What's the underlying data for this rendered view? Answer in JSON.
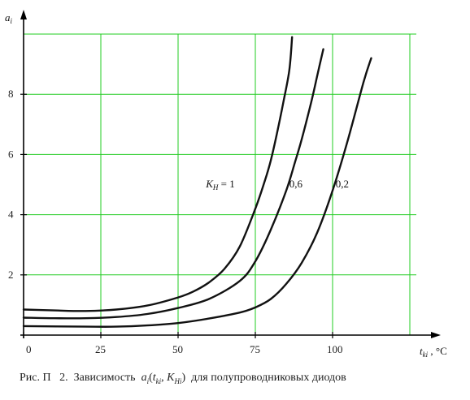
{
  "caption": "Рис. П   2.  Зависимость  a_i(t_ki, K_Hi)  для полупроводниковых диодов",
  "chart_data": {
    "type": "line",
    "title": "",
    "xlabel": "t_ki, °C",
    "ylabel": "a_i",
    "xlim": [
      0,
      125
    ],
    "ylim": [
      0,
      10
    ],
    "x_ticks": [
      0,
      25,
      50,
      75,
      100
    ],
    "y_ticks": [
      2,
      4,
      6,
      8
    ],
    "grid": true,
    "colors": {
      "grid": "#22cc22",
      "curve": "#111111",
      "axis": "#000000"
    },
    "series": [
      {
        "name": "K_H = 1",
        "label_position": [
          59,
          4.9
        ],
        "points": [
          [
            0,
            0.85
          ],
          [
            10,
            0.82
          ],
          [
            20,
            0.8
          ],
          [
            30,
            0.85
          ],
          [
            40,
            0.98
          ],
          [
            50,
            1.25
          ],
          [
            55,
            1.45
          ],
          [
            60,
            1.75
          ],
          [
            65,
            2.2
          ],
          [
            70,
            2.95
          ],
          [
            75,
            4.2
          ],
          [
            78,
            5.1
          ],
          [
            80,
            5.8
          ],
          [
            82,
            6.7
          ],
          [
            84,
            7.7
          ],
          [
            86,
            8.8
          ],
          [
            86.9,
            9.9
          ]
        ]
      },
      {
        "name": "0,6",
        "label_position": [
          86,
          4.9
        ],
        "points": [
          [
            0,
            0.58
          ],
          [
            10,
            0.56
          ],
          [
            20,
            0.56
          ],
          [
            30,
            0.6
          ],
          [
            40,
            0.7
          ],
          [
            50,
            0.9
          ],
          [
            60,
            1.2
          ],
          [
            70,
            1.8
          ],
          [
            75,
            2.45
          ],
          [
            80,
            3.5
          ],
          [
            85,
            4.8
          ],
          [
            88,
            5.8
          ],
          [
            90,
            6.5
          ],
          [
            93,
            7.7
          ],
          [
            95,
            8.6
          ],
          [
            97,
            9.5
          ]
        ]
      },
      {
        "name": "0,2",
        "label_position": [
          101,
          4.9
        ],
        "points": [
          [
            0,
            0.3
          ],
          [
            20,
            0.28
          ],
          [
            30,
            0.28
          ],
          [
            40,
            0.32
          ],
          [
            50,
            0.4
          ],
          [
            60,
            0.55
          ],
          [
            70,
            0.75
          ],
          [
            75,
            0.92
          ],
          [
            80,
            1.2
          ],
          [
            85,
            1.7
          ],
          [
            90,
            2.4
          ],
          [
            95,
            3.4
          ],
          [
            100,
            4.8
          ],
          [
            105,
            6.5
          ],
          [
            110,
            8.4
          ],
          [
            112.5,
            9.2
          ]
        ]
      }
    ]
  }
}
